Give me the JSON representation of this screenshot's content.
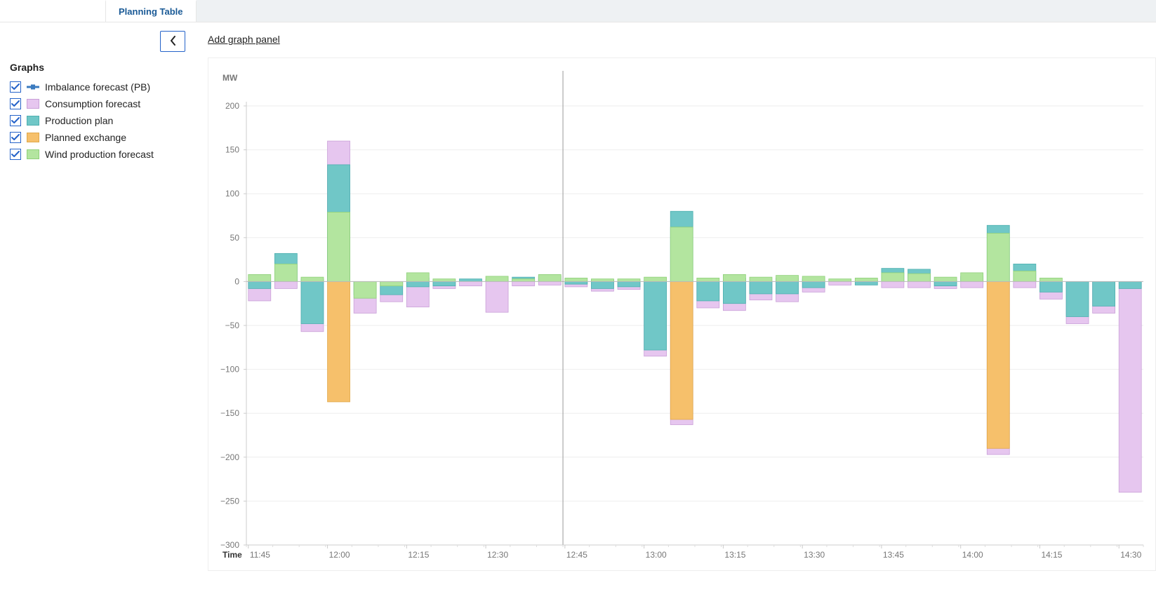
{
  "tabs": {
    "active": "Planning Table"
  },
  "sidebar": {
    "title": "Graphs",
    "collapse_icon": "chevron-left",
    "series": [
      {
        "id": "imbalance",
        "label": "Imbalance forecast (PB)",
        "type": "line",
        "color": "#3b7bbf",
        "checked": true
      },
      {
        "id": "consumption",
        "label": "Consumption forecast",
        "type": "bar",
        "color": "#e6c6ef",
        "border": "#c9a0d8",
        "checked": true
      },
      {
        "id": "production",
        "label": "Production plan",
        "type": "bar",
        "color": "#70c7c7",
        "border": "#4fb0b0",
        "checked": true
      },
      {
        "id": "exchange",
        "label": "Planned exchange",
        "type": "bar",
        "color": "#f6c06b",
        "border": "#e0a84a",
        "checked": true
      },
      {
        "id": "wind",
        "label": "Wind production forecast",
        "type": "bar",
        "color": "#b3e59f",
        "border": "#8fd07a",
        "checked": true
      }
    ]
  },
  "main": {
    "add_panel_label": "Add graph panel"
  },
  "chart": {
    "type": "stacked-bar",
    "unit_label": "MW",
    "time_axis_label": "Time",
    "y_axis": {
      "min": -300,
      "max": 200,
      "ticks": [
        200,
        150,
        100,
        50,
        0,
        -50,
        -100,
        -150,
        -200,
        -250,
        -300
      ]
    },
    "now_line_index": 12,
    "x_major_ticks": [
      "11:45",
      "12:00",
      "12:15",
      "12:30",
      "12:45",
      "13:00",
      "13:15",
      "13:30",
      "13:45",
      "14:00",
      "14:15",
      "14:30"
    ],
    "x_major_every": 3,
    "background_color": "#ffffff",
    "grid_color": "#eeeeee",
    "axis_color": "#cccccc",
    "now_color": "#999999",
    "bar_group_count": 34,
    "bar_gap_ratio": 0.15,
    "colors": {
      "consumption": "#e6c6ef",
      "production": "#70c7c7",
      "exchange": "#f6c06b",
      "wind": "#b3e59f",
      "imbalance": "#3b7bbf"
    },
    "borders": {
      "consumption": "#c9a0d8",
      "production": "#4fb0b0",
      "exchange": "#e0a84a",
      "wind": "#8fd07a"
    },
    "series_data": [
      {
        "pos": {
          "wind": 8
        },
        "neg": {
          "production": -8,
          "consumption": -22
        }
      },
      {
        "pos": {
          "production": 32,
          "wind": 20
        },
        "neg": {
          "consumption": -8
        }
      },
      {
        "pos": {
          "wind": 5,
          "production": 3
        },
        "neg": {
          "production": -48,
          "consumption": -57
        }
      },
      {
        "pos": {
          "consumption": 160,
          "production": 133,
          "wind": 79
        },
        "neg": {
          "exchange": -137
        }
      },
      {
        "pos": {},
        "neg": {
          "production": -15,
          "wind": -19,
          "consumption": -36
        }
      },
      {
        "pos": {},
        "neg": {
          "wind": -5,
          "production": -15,
          "consumption": -23
        }
      },
      {
        "pos": {
          "wind": 10,
          "production": 4
        },
        "neg": {
          "production": -6,
          "consumption": -29
        }
      },
      {
        "pos": {
          "wind": 3
        },
        "neg": {
          "production": -5,
          "consumption": -8
        }
      },
      {
        "pos": {
          "production": 3
        },
        "neg": {
          "consumption": -5
        }
      },
      {
        "pos": {
          "wind": 6,
          "production": 2
        },
        "neg": {
          "consumption": -35
        }
      },
      {
        "pos": {
          "production": 5,
          "wind": 3
        },
        "neg": {
          "consumption": -5
        }
      },
      {
        "pos": {
          "wind": 8,
          "production": 6,
          "consumption": 3
        },
        "neg": {
          "consumption": -4
        }
      },
      {
        "pos": {
          "wind": 4
        },
        "neg": {
          "production": -3,
          "consumption": -6
        }
      },
      {
        "pos": {
          "wind": 3,
          "production": 2
        },
        "neg": {
          "production": -8,
          "consumption": -11
        }
      },
      {
        "pos": {
          "wind": 3
        },
        "neg": {
          "production": -6,
          "consumption": -9
        }
      },
      {
        "pos": {
          "wind": 5
        },
        "neg": {
          "production": -78,
          "consumption": -85
        }
      },
      {
        "pos": {
          "production": 80,
          "wind": 62
        },
        "neg": {
          "exchange": -157,
          "consumption": -163
        }
      },
      {
        "pos": {
          "wind": 4
        },
        "neg": {
          "production": -22,
          "consumption": -30
        }
      },
      {
        "pos": {
          "wind": 8,
          "production": 4
        },
        "neg": {
          "production": -25,
          "consumption": -33
        }
      },
      {
        "pos": {
          "wind": 5
        },
        "neg": {
          "production": -14,
          "consumption": -21
        }
      },
      {
        "pos": {
          "wind": 7,
          "production": 4
        },
        "neg": {
          "production": -14,
          "consumption": -23
        }
      },
      {
        "pos": {
          "wind": 6,
          "production": 3
        },
        "neg": {
          "production": -7,
          "consumption": -12
        }
      },
      {
        "pos": {
          "wind": 3
        },
        "neg": {
          "consumption": -4
        }
      },
      {
        "pos": {
          "wind": 4,
          "consumption": 2
        },
        "neg": {
          "production": -4
        }
      },
      {
        "pos": {
          "production": 15,
          "wind": 10
        },
        "neg": {
          "consumption": -7
        }
      },
      {
        "pos": {
          "production": 14,
          "wind": 9
        },
        "neg": {
          "consumption": -7
        }
      },
      {
        "pos": {
          "wind": 5
        },
        "neg": {
          "production": -5,
          "consumption": -8
        }
      },
      {
        "pos": {
          "wind": 10,
          "production": 6
        },
        "neg": {
          "consumption": -7
        }
      },
      {
        "pos": {
          "production": 64,
          "wind": 55
        },
        "neg": {
          "exchange": -190,
          "consumption": -197
        }
      },
      {
        "pos": {
          "production": 20,
          "wind": 12
        },
        "neg": {
          "consumption": -7
        }
      },
      {
        "pos": {
          "wind": 4
        },
        "neg": {
          "production": -12,
          "consumption": -20
        }
      },
      {
        "pos": {},
        "neg": {
          "production": -40,
          "consumption": -48
        }
      },
      {
        "pos": {},
        "neg": {
          "production": -28,
          "consumption": -36
        }
      },
      {
        "pos": {},
        "neg": {
          "production": -8,
          "consumption": -240
        }
      }
    ]
  }
}
